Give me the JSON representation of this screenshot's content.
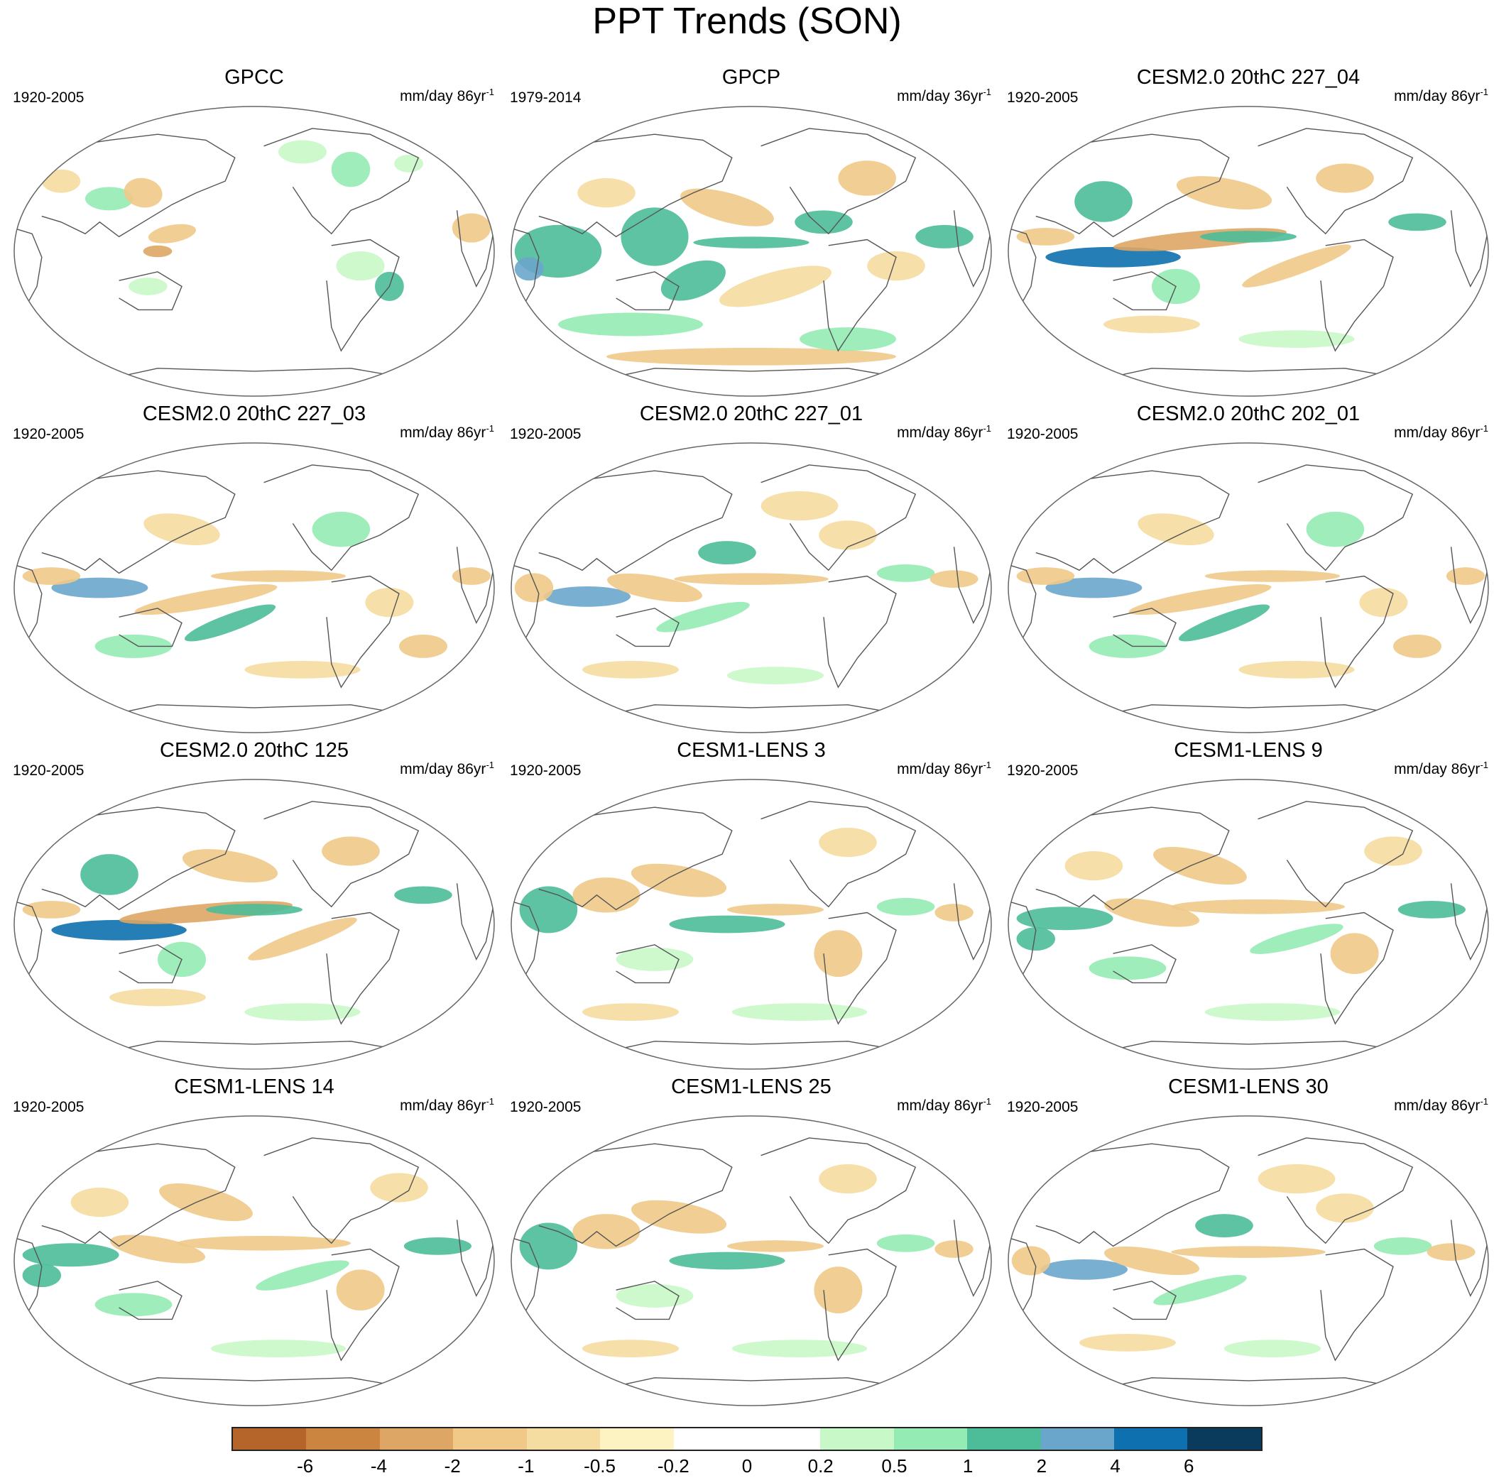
{
  "title": "PPT Trends (SON)",
  "panels": [
    {
      "title": "GPCC",
      "period": "1920-2005",
      "units_base": "mm/day 86yr",
      "units_exp": "-1",
      "style": "obs-land"
    },
    {
      "title": "GPCP",
      "period": "1979-2014",
      "units_base": "mm/day 36yr",
      "units_exp": "-1",
      "style": "obs-global"
    },
    {
      "title": "CESM2.0 20thC 227_04",
      "period": "1920-2005",
      "units_base": "mm/day 86yr",
      "units_exp": "-1",
      "style": "model-a"
    },
    {
      "title": "CESM2.0 20thC 227_03",
      "period": "1920-2005",
      "units_base": "mm/day 86yr",
      "units_exp": "-1",
      "style": "model-b"
    },
    {
      "title": "CESM2.0 20thC 227_01",
      "period": "1920-2005",
      "units_base": "mm/day 86yr",
      "units_exp": "-1",
      "style": "model-c"
    },
    {
      "title": "CESM2.0 20thC 202_01",
      "period": "1920-2005",
      "units_base": "mm/day 86yr",
      "units_exp": "-1",
      "style": "model-b"
    },
    {
      "title": "CESM2.0 20thC 125",
      "period": "1920-2005",
      "units_base": "mm/day 86yr",
      "units_exp": "-1",
      "style": "model-a"
    },
    {
      "title": "CESM1-LENS 3",
      "period": "1920-2005",
      "units_base": "mm/day 86yr",
      "units_exp": "-1",
      "style": "model-d"
    },
    {
      "title": "CESM1-LENS 9",
      "period": "1920-2005",
      "units_base": "mm/day 86yr",
      "units_exp": "-1",
      "style": "model-e"
    },
    {
      "title": "CESM1-LENS 14",
      "period": "1920-2005",
      "units_base": "mm/day 86yr",
      "units_exp": "-1",
      "style": "model-e"
    },
    {
      "title": "CESM1-LENS 25",
      "period": "1920-2005",
      "units_base": "mm/day 86yr",
      "units_exp": "-1",
      "style": "model-d"
    },
    {
      "title": "CESM1-LENS 30",
      "period": "1920-2005",
      "units_base": "mm/day 86yr",
      "units_exp": "-1",
      "style": "model-c"
    }
  ],
  "colorbar": {
    "colors": [
      "#b5652a",
      "#cc8540",
      "#dea664",
      "#f0c988",
      "#f5dca0",
      "#fdf2c2",
      "#ffffff",
      "#ffffff",
      "#c8f8c8",
      "#94ebb4",
      "#4dbc98",
      "#6aa6cb",
      "#0e70ae",
      "#0a3b5c"
    ],
    "labels": [
      "-6",
      "-4",
      "-2",
      "-1",
      "-0.5",
      "-0.2",
      "0",
      "0.2",
      "0.5",
      "1",
      "2",
      "4",
      "6"
    ]
  }
}
